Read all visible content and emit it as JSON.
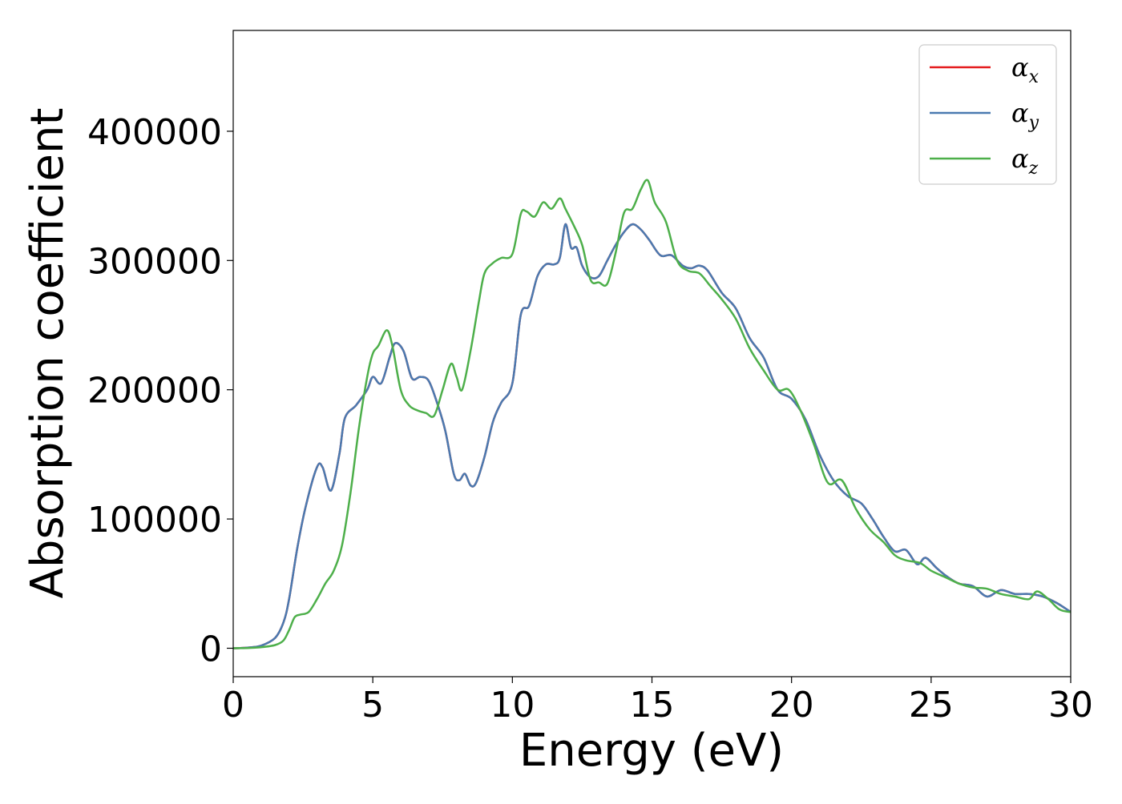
{
  "chart_data": {
    "type": "line",
    "xlabel": "Energy (eV)",
    "ylabel": "Absorption coefficient",
    "xlim": [
      0,
      30
    ],
    "ylim": [
      -22000,
      478000
    ],
    "xticks": [
      0,
      5,
      10,
      15,
      20,
      25,
      30
    ],
    "yticks": [
      0,
      100000,
      200000,
      300000,
      400000
    ],
    "grid": false,
    "legend_position": "top-right",
    "series": [
      {
        "name": "α_x",
        "symbol": "α",
        "subscript": "x",
        "color": "#e41a1c",
        "x": [
          0,
          0.5,
          1,
          1.5,
          1.8,
          2,
          2.3,
          2.6,
          3,
          3.2,
          3.5,
          3.8,
          4,
          4.4,
          4.8,
          5,
          5.3,
          5.6,
          5.8,
          6.1,
          6.4,
          6.7,
          7,
          7.3,
          7.6,
          7.9,
          8.1,
          8.3,
          8.5,
          8.7,
          9,
          9.3,
          9.6,
          10,
          10.3,
          10.6,
          10.9,
          11.2,
          11.5,
          11.7,
          11.9,
          12.1,
          12.3,
          12.5,
          12.8,
          13.1,
          13.4,
          13.7,
          14,
          14.3,
          14.6,
          14.9,
          15.3,
          15.7,
          16.1,
          16.4,
          16.7,
          17,
          17.5,
          18,
          18.5,
          19,
          19.5,
          20,
          20.5,
          21,
          21.5,
          22,
          22.5,
          22.9,
          23.3,
          23.7,
          24.1,
          24.5,
          24.8,
          25.2,
          25.6,
          26,
          26.5,
          27,
          27.5,
          28,
          28.5,
          29,
          29.5,
          30
        ],
        "y": [
          0,
          500,
          2000,
          8000,
          20000,
          38000,
          78000,
          110000,
          140000,
          140000,
          122000,
          150000,
          178000,
          188000,
          200000,
          210000,
          205000,
          225000,
          236000,
          230000,
          209000,
          210000,
          207000,
          190000,
          168000,
          135000,
          130000,
          135000,
          126000,
          128000,
          148000,
          175000,
          190000,
          205000,
          258000,
          265000,
          288000,
          297000,
          297000,
          302000,
          328000,
          310000,
          310000,
          296000,
          287000,
          288000,
          300000,
          312000,
          322000,
          328000,
          324000,
          316000,
          304000,
          304000,
          296000,
          294000,
          296000,
          292000,
          275000,
          263000,
          240000,
          225000,
          200000,
          193000,
          177000,
          150000,
          130000,
          118000,
          112000,
          100000,
          86000,
          75000,
          76000,
          65000,
          70000,
          62000,
          55000,
          50000,
          48000,
          40000,
          45000,
          42000,
          42000,
          40000,
          35000,
          28000
        ]
      },
      {
        "name": "α_y",
        "symbol": "α",
        "subscript": "y",
        "color": "#4a7ab0",
        "x": [
          0,
          0.5,
          1,
          1.5,
          1.8,
          2,
          2.3,
          2.6,
          3,
          3.2,
          3.5,
          3.8,
          4,
          4.4,
          4.8,
          5,
          5.3,
          5.6,
          5.8,
          6.1,
          6.4,
          6.7,
          7,
          7.3,
          7.6,
          7.9,
          8.1,
          8.3,
          8.5,
          8.7,
          9,
          9.3,
          9.6,
          10,
          10.3,
          10.6,
          10.9,
          11.2,
          11.5,
          11.7,
          11.9,
          12.1,
          12.3,
          12.5,
          12.8,
          13.1,
          13.4,
          13.7,
          14,
          14.3,
          14.6,
          14.9,
          15.3,
          15.7,
          16.1,
          16.4,
          16.7,
          17,
          17.5,
          18,
          18.5,
          19,
          19.5,
          20,
          20.5,
          21,
          21.5,
          22,
          22.5,
          22.9,
          23.3,
          23.7,
          24.1,
          24.5,
          24.8,
          25.2,
          25.6,
          26,
          26.5,
          27,
          27.5,
          28,
          28.5,
          29,
          29.5,
          30
        ],
        "y": [
          0,
          500,
          2000,
          8000,
          20000,
          38000,
          78000,
          110000,
          140000,
          140000,
          122000,
          150000,
          178000,
          188000,
          200000,
          210000,
          205000,
          225000,
          236000,
          230000,
          209000,
          210000,
          207000,
          190000,
          168000,
          135000,
          130000,
          135000,
          126000,
          128000,
          148000,
          175000,
          190000,
          205000,
          258000,
          265000,
          288000,
          297000,
          297000,
          302000,
          328000,
          310000,
          310000,
          296000,
          287000,
          288000,
          300000,
          312000,
          322000,
          328000,
          324000,
          316000,
          304000,
          304000,
          296000,
          294000,
          296000,
          292000,
          275000,
          263000,
          240000,
          225000,
          200000,
          193000,
          177000,
          150000,
          130000,
          118000,
          112000,
          100000,
          86000,
          75000,
          76000,
          65000,
          70000,
          62000,
          55000,
          50000,
          48000,
          40000,
          45000,
          42000,
          42000,
          40000,
          35000,
          28000
        ]
      },
      {
        "name": "α_z",
        "symbol": "α",
        "subscript": "z",
        "color": "#4daf4a",
        "x": [
          0,
          0.5,
          1,
          1.5,
          1.8,
          2,
          2.2,
          2.4,
          2.7,
          3,
          3.3,
          3.6,
          3.9,
          4.2,
          4.5,
          4.8,
          5,
          5.2,
          5.5,
          5.7,
          6,
          6.3,
          6.6,
          6.9,
          7.2,
          7.5,
          7.8,
          8,
          8.2,
          8.5,
          8.8,
          9,
          9.3,
          9.6,
          10,
          10.3,
          10.5,
          10.8,
          11.1,
          11.4,
          11.7,
          11.9,
          12.2,
          12.5,
          12.8,
          13.1,
          13.4,
          13.7,
          14,
          14.3,
          14.6,
          14.85,
          15.1,
          15.5,
          15.9,
          16.3,
          16.7,
          17.1,
          17.5,
          18,
          18.5,
          19,
          19.5,
          19.9,
          20.3,
          20.8,
          21.3,
          21.8,
          22.3,
          22.8,
          23.3,
          23.7,
          24.1,
          24.6,
          25,
          25.5,
          26,
          26.5,
          27,
          27.5,
          28,
          28.5,
          28.8,
          29.2,
          29.6,
          30
        ],
        "y": [
          0,
          200,
          800,
          2500,
          6000,
          14000,
          24000,
          26000,
          28000,
          38000,
          50000,
          60000,
          80000,
          120000,
          170000,
          210000,
          228000,
          234000,
          246000,
          234000,
          200000,
          188000,
          184000,
          182000,
          180000,
          200000,
          220000,
          210000,
          200000,
          230000,
          268000,
          290000,
          298000,
          302000,
          305000,
          336000,
          338000,
          334000,
          345000,
          340000,
          348000,
          340000,
          327000,
          312000,
          285000,
          283000,
          282000,
          306000,
          337000,
          340000,
          355000,
          362000,
          345000,
          330000,
          300000,
          292000,
          290000,
          280000,
          270000,
          255000,
          232000,
          215000,
          200000,
          200000,
          185000,
          158000,
          128000,
          130000,
          108000,
          92000,
          82000,
          72000,
          68000,
          66000,
          60000,
          55000,
          50000,
          47000,
          46000,
          42000,
          40000,
          38000,
          44000,
          38000,
          30000,
          28000
        ]
      }
    ]
  }
}
